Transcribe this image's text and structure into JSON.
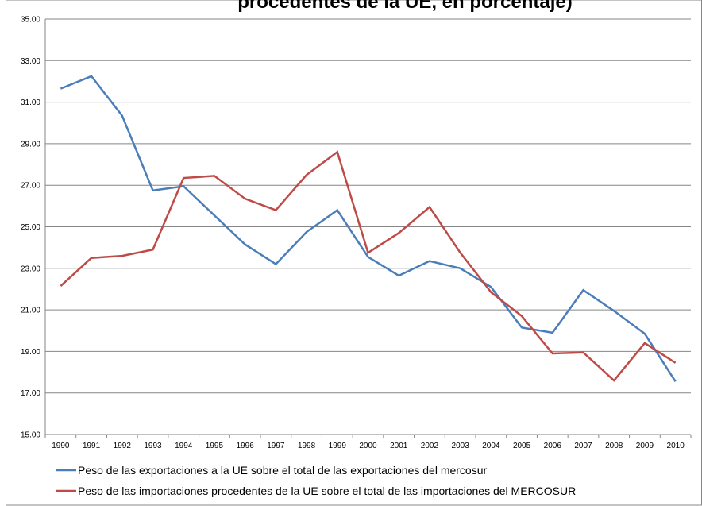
{
  "chart_data": {
    "type": "line",
    "title": "procedentes de la UE, en porcentaje)",
    "categories": [
      "1990",
      "1991",
      "1992",
      "1993",
      "1994",
      "1995",
      "1996",
      "1997",
      "1998",
      "1999",
      "2000",
      "2001",
      "2002",
      "2003",
      "2004",
      "2005",
      "2006",
      "2007",
      "2008",
      "2009",
      "2010"
    ],
    "series": [
      {
        "name": "Peso de las exportaciones a la UE sobre el total de las exportaciones del mercosur",
        "color": "#4a7ebb",
        "values": [
          31.65,
          32.25,
          30.35,
          26.75,
          26.95,
          25.55,
          24.15,
          23.2,
          24.75,
          25.8,
          23.55,
          22.65,
          23.35,
          23.0,
          22.1,
          20.15,
          19.9,
          21.95,
          20.95,
          19.85,
          17.55
        ]
      },
      {
        "name": "Peso de las importaciones procedentes de la UE sobre el total de las importaciones del MERCOSUR",
        "color": "#be4b48",
        "values": [
          22.15,
          23.5,
          23.6,
          23.9,
          27.35,
          27.45,
          26.35,
          25.8,
          27.5,
          28.6,
          23.75,
          24.7,
          25.95,
          23.75,
          21.85,
          20.7,
          18.9,
          18.95,
          17.6,
          19.4,
          18.45
        ]
      }
    ],
    "ylim": [
      15,
      35
    ],
    "yticks": [
      {
        "value": 15,
        "label": "15.00"
      },
      {
        "value": 17,
        "label": "17.00"
      },
      {
        "value": 19,
        "label": "19.00"
      },
      {
        "value": 21,
        "label": "21.00"
      },
      {
        "value": 23,
        "label": "23.00"
      },
      {
        "value": 25,
        "label": "25.00"
      },
      {
        "value": 27,
        "label": "27.00"
      },
      {
        "value": 29,
        "label": "29.00"
      },
      {
        "value": 31,
        "label": "31.00"
      },
      {
        "value": 33,
        "label": "33.00"
      },
      {
        "value": 35,
        "label": "35.00"
      }
    ],
    "grid": true,
    "legend": "bottom"
  }
}
